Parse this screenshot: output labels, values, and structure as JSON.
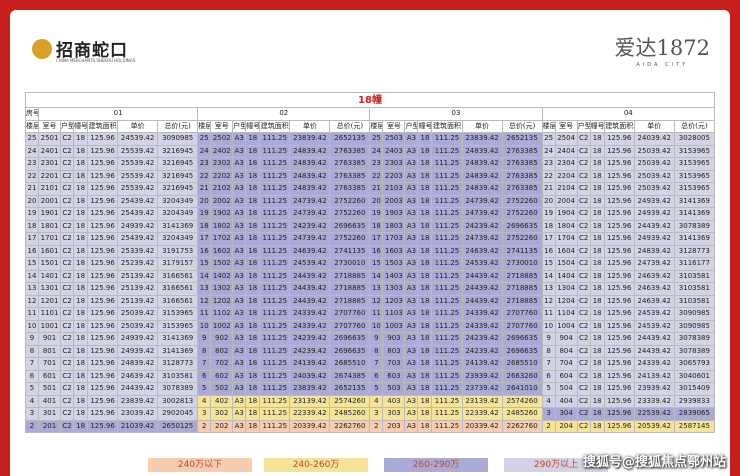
{
  "header": {
    "brand": "招商蛇口",
    "brand_sub": "CHINA MERCHANTS SHEKOU HOLDINGS",
    "project": "爱达1872",
    "project_sub": "AIDA CITY"
  },
  "table": {
    "title": "18幢",
    "room_label": "房号",
    "units": [
      "01",
      "02",
      "03",
      "04"
    ],
    "columns": [
      "楼层",
      "室号",
      "户型",
      "幢号",
      "建筑面积",
      "单价",
      "总价(元)"
    ],
    "rows": [
      {
        "cells": [
          [
            25,
            2501,
            "C2",
            18,
            125.96,
            24539.42,
            3090985
          ],
          [
            25,
            2502,
            "A3",
            18,
            111.25,
            23839.42,
            2652135
          ],
          [
            25,
            2503,
            "A3",
            18,
            111.25,
            23839.42,
            2652135
          ],
          [
            25,
            2504,
            "C2",
            18,
            125.96,
            24039.42,
            3028005
          ]
        ],
        "colors": [
          "#d3d3e6",
          "#abaad6",
          "#abaad6",
          "#d3d3e6"
        ]
      },
      {
        "cells": [
          [
            24,
            2401,
            "C2",
            18,
            125.96,
            25539.42,
            3216945
          ],
          [
            24,
            2402,
            "A3",
            18,
            111.25,
            24839.42,
            2763385
          ],
          [
            24,
            2403,
            "A3",
            18,
            111.25,
            24839.42,
            2763385
          ],
          [
            24,
            2404,
            "C2",
            18,
            125.96,
            25039.42,
            3153965
          ]
        ],
        "colors": [
          "#d3d3e6",
          "#abaad6",
          "#abaad6",
          "#d3d3e6"
        ]
      },
      {
        "cells": [
          [
            23,
            2301,
            "C2",
            18,
            125.96,
            25539.42,
            3216945
          ],
          [
            23,
            2302,
            "A3",
            18,
            111.25,
            24839.42,
            2763385
          ],
          [
            23,
            2303,
            "A3",
            18,
            111.25,
            24839.42,
            2763385
          ],
          [
            23,
            2304,
            "C2",
            18,
            125.96,
            25039.42,
            3153965
          ]
        ],
        "colors": [
          "#d3d3e6",
          "#abaad6",
          "#abaad6",
          "#d3d3e6"
        ]
      },
      {
        "cells": [
          [
            22,
            2201,
            "C2",
            18,
            125.96,
            25539.42,
            3216945
          ],
          [
            22,
            2202,
            "A3",
            18,
            111.25,
            24839.42,
            2763385
          ],
          [
            22,
            2203,
            "A3",
            18,
            111.25,
            24839.42,
            2763385
          ],
          [
            22,
            2204,
            "C2",
            18,
            125.96,
            25039.42,
            3153965
          ]
        ],
        "colors": [
          "#d3d3e6",
          "#abaad6",
          "#abaad6",
          "#d3d3e6"
        ]
      },
      {
        "cells": [
          [
            21,
            2101,
            "C2",
            18,
            125.96,
            25539.42,
            3216945
          ],
          [
            21,
            2102,
            "A3",
            18,
            111.25,
            24839.42,
            2763385
          ],
          [
            21,
            2103,
            "A3",
            18,
            111.25,
            24839.42,
            2763385
          ],
          [
            21,
            2104,
            "C2",
            18,
            125.96,
            25039.42,
            3153965
          ]
        ],
        "colors": [
          "#d3d3e6",
          "#abaad6",
          "#abaad6",
          "#d3d3e6"
        ]
      },
      {
        "cells": [
          [
            20,
            2001,
            "C2",
            18,
            125.96,
            25439.42,
            3204349
          ],
          [
            20,
            2002,
            "A3",
            18,
            111.25,
            24739.42,
            2752260
          ],
          [
            20,
            2003,
            "A3",
            18,
            111.25,
            24739.42,
            2752260
          ],
          [
            20,
            2004,
            "C2",
            18,
            125.96,
            24939.42,
            3141369
          ]
        ],
        "colors": [
          "#d3d3e6",
          "#abaad6",
          "#abaad6",
          "#d3d3e6"
        ]
      },
      {
        "cells": [
          [
            19,
            1901,
            "C2",
            18,
            125.96,
            25439.42,
            3204349
          ],
          [
            19,
            1902,
            "A3",
            18,
            111.25,
            24739.42,
            2752260
          ],
          [
            19,
            1903,
            "A3",
            18,
            111.25,
            24739.42,
            2752260
          ],
          [
            19,
            1904,
            "C2",
            18,
            125.96,
            24939.42,
            3141369
          ]
        ],
        "colors": [
          "#d3d3e6",
          "#abaad6",
          "#abaad6",
          "#d3d3e6"
        ]
      },
      {
        "cells": [
          [
            18,
            1801,
            "C2",
            18,
            125.96,
            24939.42,
            3141369
          ],
          [
            18,
            1802,
            "A3",
            18,
            111.25,
            24239.42,
            2696635
          ],
          [
            18,
            1803,
            "A3",
            18,
            111.25,
            24239.42,
            2696635
          ],
          [
            18,
            1804,
            "C2",
            18,
            125.96,
            24439.42,
            3078389
          ]
        ],
        "colors": [
          "#d3d3e6",
          "#abaad6",
          "#abaad6",
          "#d3d3e6"
        ]
      },
      {
        "cells": [
          [
            17,
            1701,
            "C2",
            18,
            125.96,
            25439.42,
            3204349
          ],
          [
            17,
            1702,
            "A3",
            18,
            111.25,
            24739.42,
            2752260
          ],
          [
            17,
            1703,
            "A3",
            18,
            111.25,
            24739.42,
            2752260
          ],
          [
            17,
            1704,
            "C2",
            18,
            125.96,
            24939.42,
            3141369
          ]
        ],
        "colors": [
          "#d3d3e6",
          "#abaad6",
          "#abaad6",
          "#d3d3e6"
        ]
      },
      {
        "cells": [
          [
            16,
            1601,
            "C2",
            18,
            125.96,
            25339.42,
            3191753
          ],
          [
            16,
            1602,
            "A3",
            18,
            111.25,
            24639.42,
            2741135
          ],
          [
            16,
            1603,
            "A3",
            18,
            111.25,
            24639.42,
            2741135
          ],
          [
            16,
            1604,
            "C2",
            18,
            125.96,
            24839.42,
            3128773
          ]
        ],
        "colors": [
          "#d3d3e6",
          "#abaad6",
          "#abaad6",
          "#d3d3e6"
        ]
      },
      {
        "cells": [
          [
            15,
            1501,
            "C2",
            18,
            125.96,
            25239.42,
            3179157
          ],
          [
            15,
            1502,
            "A3",
            18,
            111.25,
            24539.42,
            2730010
          ],
          [
            15,
            1503,
            "A3",
            18,
            111.25,
            24539.42,
            2730010
          ],
          [
            15,
            1504,
            "C2",
            18,
            125.96,
            24739.42,
            3116177
          ]
        ],
        "colors": [
          "#d3d3e6",
          "#abaad6",
          "#abaad6",
          "#d3d3e6"
        ]
      },
      {
        "cells": [
          [
            14,
            1401,
            "C2",
            18,
            125.96,
            25139.42,
            3166561
          ],
          [
            14,
            1402,
            "A3",
            18,
            111.25,
            24439.42,
            2718885
          ],
          [
            14,
            1403,
            "A3",
            18,
            111.25,
            24439.42,
            2718885
          ],
          [
            14,
            1404,
            "C2",
            18,
            125.96,
            24639.42,
            3103581
          ]
        ],
        "colors": [
          "#d3d3e6",
          "#abaad6",
          "#abaad6",
          "#d3d3e6"
        ]
      },
      {
        "cells": [
          [
            13,
            1301,
            "C2",
            18,
            125.96,
            25139.42,
            3166561
          ],
          [
            13,
            1302,
            "A3",
            18,
            111.25,
            24439.42,
            2718885
          ],
          [
            13,
            1303,
            "A3",
            18,
            111.25,
            24439.42,
            2718885
          ],
          [
            13,
            1304,
            "C2",
            18,
            125.96,
            24639.42,
            3103581
          ]
        ],
        "colors": [
          "#d3d3e6",
          "#abaad6",
          "#abaad6",
          "#d3d3e6"
        ]
      },
      {
        "cells": [
          [
            12,
            1201,
            "C2",
            18,
            125.96,
            25139.42,
            3166561
          ],
          [
            12,
            1202,
            "A3",
            18,
            111.25,
            24439.42,
            2718885
          ],
          [
            12,
            1203,
            "A3",
            18,
            111.25,
            24439.42,
            2718885
          ],
          [
            12,
            1204,
            "C2",
            18,
            125.96,
            24639.42,
            3103581
          ]
        ],
        "colors": [
          "#d3d3e6",
          "#abaad6",
          "#abaad6",
          "#d3d3e6"
        ]
      },
      {
        "cells": [
          [
            11,
            1101,
            "C2",
            18,
            125.96,
            25039.42,
            3153965
          ],
          [
            11,
            1102,
            "A3",
            18,
            111.25,
            24339.42,
            2707760
          ],
          [
            11,
            1103,
            "A3",
            18,
            111.25,
            24339.42,
            2707760
          ],
          [
            11,
            1104,
            "C2",
            18,
            125.96,
            24539.42,
            3090985
          ]
        ],
        "colors": [
          "#d3d3e6",
          "#abaad6",
          "#abaad6",
          "#d3d3e6"
        ]
      },
      {
        "cells": [
          [
            10,
            1001,
            "C2",
            18,
            125.96,
            25039.42,
            3153965
          ],
          [
            10,
            1002,
            "A3",
            18,
            111.25,
            24339.42,
            2707760
          ],
          [
            10,
            1003,
            "A3",
            18,
            111.25,
            24339.42,
            2707760
          ],
          [
            10,
            1004,
            "C2",
            18,
            125.96,
            24539.42,
            3090985
          ]
        ],
        "colors": [
          "#d3d3e6",
          "#abaad6",
          "#abaad6",
          "#d3d3e6"
        ]
      },
      {
        "cells": [
          [
            9,
            901,
            "C2",
            18,
            125.96,
            24939.42,
            3141369
          ],
          [
            9,
            902,
            "A3",
            18,
            111.25,
            24239.42,
            2696635
          ],
          [
            9,
            903,
            "A3",
            18,
            111.25,
            24239.42,
            2696635
          ],
          [
            9,
            904,
            "C2",
            18,
            125.96,
            24439.42,
            3078389
          ]
        ],
        "colors": [
          "#d3d3e6",
          "#abaad6",
          "#abaad6",
          "#d3d3e6"
        ]
      },
      {
        "cells": [
          [
            8,
            801,
            "C2",
            18,
            125.96,
            24939.42,
            3141369
          ],
          [
            8,
            802,
            "A3",
            18,
            111.25,
            24239.42,
            2696635
          ],
          [
            8,
            803,
            "A3",
            18,
            111.25,
            24239.42,
            2696635
          ],
          [
            8,
            804,
            "C2",
            18,
            125.96,
            24439.42,
            3078389
          ]
        ],
        "colors": [
          "#d3d3e6",
          "#abaad6",
          "#abaad6",
          "#d3d3e6"
        ]
      },
      {
        "cells": [
          [
            7,
            701,
            "C2",
            18,
            125.96,
            24839.42,
            3128773
          ],
          [
            7,
            702,
            "A3",
            18,
            111.25,
            24139.42,
            2685510
          ],
          [
            7,
            703,
            "A3",
            18,
            111.25,
            24139.42,
            2685510
          ],
          [
            7,
            704,
            "C2",
            18,
            125.96,
            24339.42,
            3065793
          ]
        ],
        "colors": [
          "#d3d3e6",
          "#abaad6",
          "#abaad6",
          "#d3d3e6"
        ]
      },
      {
        "cells": [
          [
            6,
            601,
            "C2",
            18,
            125.96,
            24639.42,
            3103581
          ],
          [
            6,
            602,
            "A3",
            18,
            111.25,
            24039.42,
            2674385
          ],
          [
            6,
            603,
            "A3",
            18,
            111.25,
            23939.42,
            2663260
          ],
          [
            6,
            604,
            "C2",
            18,
            125.96,
            24139.42,
            3040601
          ]
        ],
        "colors": [
          "#d3d3e6",
          "#abaad6",
          "#abaad6",
          "#d3d3e6"
        ]
      },
      {
        "cells": [
          [
            5,
            501,
            "C2",
            18,
            125.96,
            24439.42,
            3078389
          ],
          [
            5,
            502,
            "A3",
            18,
            111.25,
            23839.42,
            2652135
          ],
          [
            5,
            503,
            "A3",
            18,
            111.25,
            23739.42,
            2641010
          ],
          [
            5,
            504,
            "C2",
            18,
            125.96,
            23939.42,
            3015409
          ]
        ],
        "colors": [
          "#d3d3e6",
          "#abaad6",
          "#abaad6",
          "#d3d3e6"
        ]
      },
      {
        "cells": [
          [
            4,
            401,
            "C2",
            18,
            125.96,
            23839.42,
            3002813
          ],
          [
            4,
            402,
            "A3",
            18,
            111.25,
            23139.42,
            2574260
          ],
          [
            4,
            403,
            "A3",
            18,
            111.25,
            23139.42,
            2574260
          ],
          [
            4,
            404,
            "C2",
            18,
            125.96,
            23339.42,
            2939833
          ]
        ],
        "colors": [
          "#d3d3e6",
          "#f6e39a",
          "#f6e39a",
          "#d3d3e6"
        ]
      },
      {
        "cells": [
          [
            3,
            301,
            "C2",
            18,
            125.96,
            23039.42,
            2902045
          ],
          [
            3,
            302,
            "A3",
            18,
            111.25,
            22339.42,
            2485260
          ],
          [
            3,
            303,
            "A3",
            18,
            111.25,
            22339.42,
            2485260
          ],
          [
            3,
            304,
            "C2",
            18,
            125.96,
            22539.42,
            2839065
          ]
        ],
        "colors": [
          "#d3d3e6",
          "#f6e39a",
          "#f6e39a",
          "#abaad6"
        ]
      },
      {
        "cells": [
          [
            2,
            201,
            "C2",
            18,
            125.96,
            21039.42,
            2650125
          ],
          [
            2,
            202,
            "A3",
            18,
            111.25,
            20339.42,
            2262760
          ],
          [
            2,
            203,
            "A3",
            18,
            111.25,
            20339.42,
            2262760
          ],
          [
            2,
            204,
            "C2",
            18,
            125.96,
            20539.42,
            2587145
          ]
        ],
        "colors": [
          "#abaad6",
          "#f6cdb0",
          "#f6cdb0",
          "#f6e39a"
        ]
      }
    ]
  },
  "legend": [
    {
      "label": "240万以下",
      "color": "#f6cdb0"
    },
    {
      "label": "240-260万",
      "color": "#f6e39a"
    },
    {
      "label": "260-290万",
      "color": "#abaad6"
    },
    {
      "label": "290万以上",
      "color": "#d3d3e6"
    }
  ],
  "watermark": "搜狐号@搜狐焦点鄂州站"
}
